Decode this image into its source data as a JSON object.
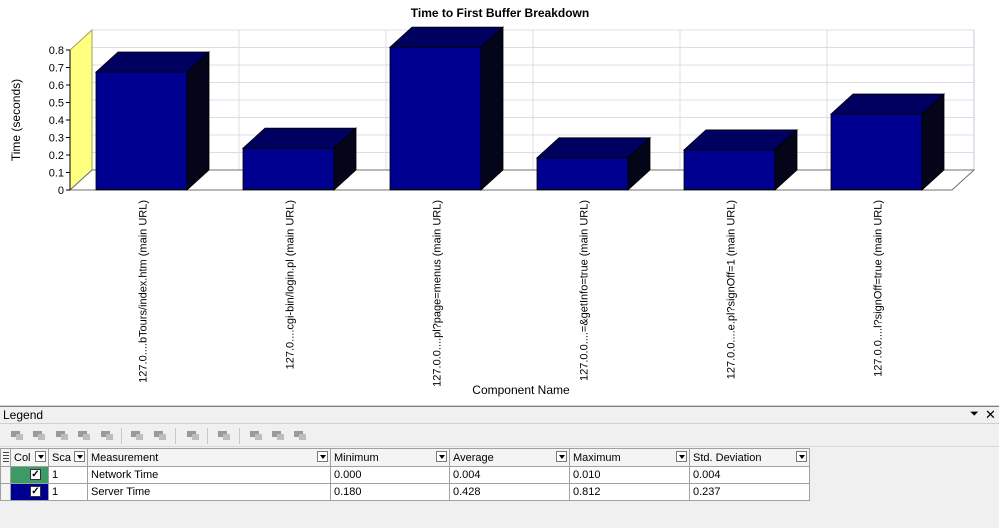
{
  "chart_data": {
    "type": "bar",
    "title": "Time to First Buffer Breakdown",
    "xlabel": "Component Name",
    "ylabel": "Time (seconds)",
    "ylim": [
      0,
      0.8
    ],
    "yticks": [
      "0",
      "0.1",
      "0.2",
      "0.3",
      "0.4",
      "0.5",
      "0.6",
      "0.7",
      "0.8"
    ],
    "grid": true,
    "categories": [
      "127.0....bTours/index.htm (main URL)",
      "127.0....cgi-bin/login.pl (main URL)",
      "127.0.0....pl?page=menus (main URL)",
      "127.0.0....=&getInfo=true (main URL)",
      "127.0.0....e.pl?signOff=1 (main URL)",
      "127.0.0....l?signOff=true (main URL)"
    ],
    "series": [
      {
        "name": "Network Time",
        "color": "#3c9a64",
        "values": [
          0.004,
          0.004,
          0.004,
          0.004,
          0.004,
          0.004
        ]
      },
      {
        "name": "Server Time",
        "color": "#000090",
        "values": [
          0.67,
          0.235,
          0.812,
          0.18,
          0.225,
          0.43
        ]
      }
    ]
  },
  "legend": {
    "title": "Legend",
    "pin_icon": "pin-icon",
    "close_icon": "close-icon",
    "columns": [
      "Col",
      "Sca",
      "Measurement",
      "Minimum",
      "Average",
      "Maximum",
      "Std. Deviation"
    ],
    "rows": [
      {
        "color": "#3c9a64",
        "scale": "1",
        "measurement": "Network Time",
        "minimum": "0.000",
        "average": "0.004",
        "maximum": "0.010",
        "std": "0.004"
      },
      {
        "color": "#000090",
        "scale": "1",
        "measurement": "Server Time",
        "minimum": "0.180",
        "average": "0.428",
        "maximum": "0.812",
        "std": "0.237"
      }
    ]
  }
}
